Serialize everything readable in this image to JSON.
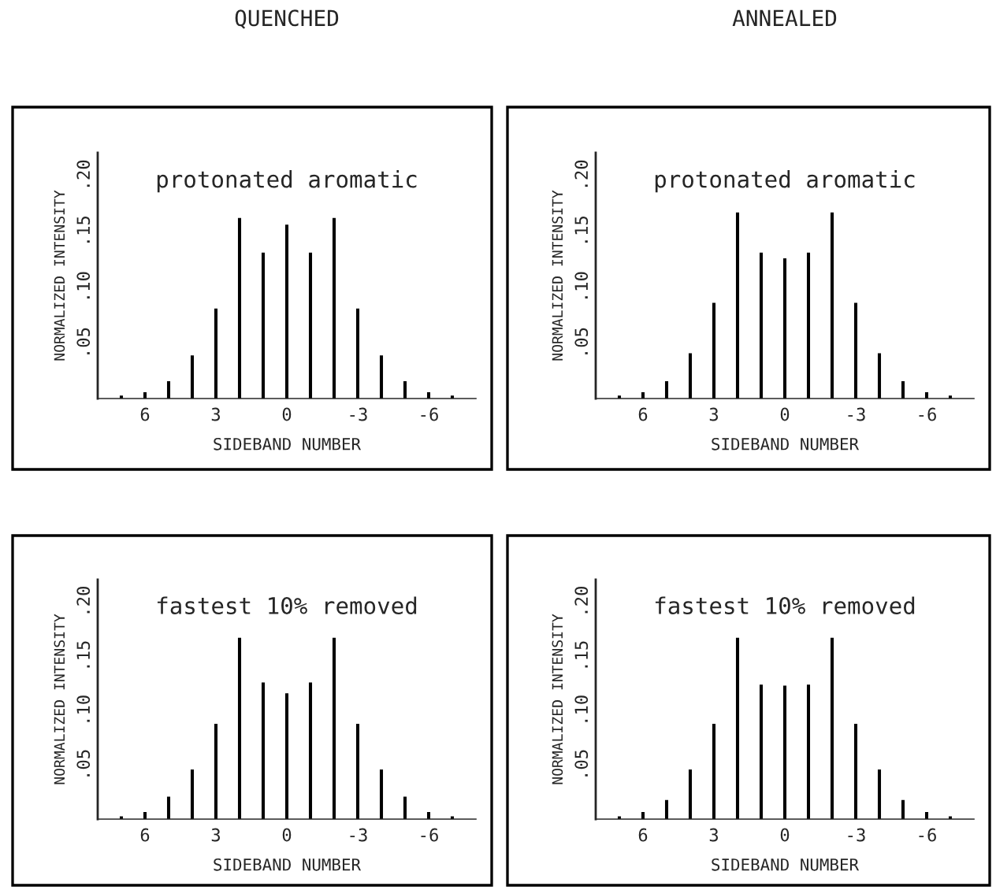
{
  "chart_data": [
    {
      "type": "bar",
      "title": "QUENCHED",
      "annotations": [
        "protonated aromatic"
      ],
      "xlabel": "SIDEBAND NUMBER",
      "ylabel": "NORMALIZED INTENSITY",
      "x": [
        7,
        6,
        5,
        4,
        3,
        2,
        1,
        0,
        -1,
        -2,
        -3,
        -4,
        -5,
        -6,
        -7
      ],
      "values": [
        0.002,
        0.005,
        0.015,
        0.038,
        0.08,
        0.161,
        0.13,
        0.155,
        0.13,
        0.161,
        0.08,
        0.038,
        0.015,
        0.005,
        0.002
      ],
      "color": "#000000",
      "xlim": [
        8,
        -8
      ],
      "xticks": [
        6,
        3,
        0,
        -3,
        -6
      ],
      "ylim": [
        0,
        0.22
      ],
      "yticks": [
        {
          "value": 0.05,
          "label": ".05"
        },
        {
          "value": 0.1,
          "label": ".10"
        },
        {
          "value": 0.15,
          "label": ".15"
        },
        {
          "value": 0.2,
          "label": ".20"
        }
      ],
      "grid": false,
      "legend": false
    },
    {
      "type": "bar",
      "title": "ANNEALED",
      "annotations": [
        "protonated aromatic"
      ],
      "xlabel": "SIDEBAND NUMBER",
      "ylabel": "NORMALIZED INTENSITY",
      "x": [
        7,
        6,
        5,
        4,
        3,
        2,
        1,
        0,
        -1,
        -2,
        -3,
        -4,
        -5,
        -6,
        -7
      ],
      "values": [
        0.002,
        0.005,
        0.015,
        0.04,
        0.085,
        0.166,
        0.13,
        0.125,
        0.13,
        0.166,
        0.085,
        0.04,
        0.015,
        0.005,
        0.002
      ],
      "color": "#000000",
      "xlim": [
        8,
        -8
      ],
      "xticks": [
        6,
        3,
        0,
        -3,
        -6
      ],
      "ylim": [
        0,
        0.22
      ],
      "yticks": [
        {
          "value": 0.05,
          "label": ".05"
        },
        {
          "value": 0.1,
          "label": ".10"
        },
        {
          "value": 0.15,
          "label": ".15"
        },
        {
          "value": 0.2,
          "label": ".20"
        }
      ],
      "grid": false,
      "legend": false
    },
    {
      "type": "bar",
      "annotations": [
        "fastest 10% removed"
      ],
      "xlabel": "SIDEBAND NUMBER",
      "ylabel": "NORMALIZED INTENSITY",
      "x": [
        7,
        6,
        5,
        4,
        3,
        2,
        1,
        0,
        -1,
        -2,
        -3,
        -4,
        -5,
        -6,
        -7
      ],
      "values": [
        0.002,
        0.006,
        0.02,
        0.045,
        0.087,
        0.166,
        0.125,
        0.115,
        0.125,
        0.166,
        0.087,
        0.045,
        0.02,
        0.006,
        0.002
      ],
      "color": "#000000",
      "xlim": [
        8,
        -8
      ],
      "xticks": [
        6,
        3,
        0,
        -3,
        -6
      ],
      "ylim": [
        0,
        0.22
      ],
      "yticks": [
        {
          "value": 0.05,
          "label": ".05"
        },
        {
          "value": 0.1,
          "label": ".10"
        },
        {
          "value": 0.15,
          "label": ".15"
        },
        {
          "value": 0.2,
          "label": ".20"
        }
      ],
      "grid": false,
      "legend": false
    },
    {
      "type": "bar",
      "annotations": [
        "fastest 10% removed"
      ],
      "xlabel": "SIDEBAND NUMBER",
      "ylabel": "NORMALIZED INTENSITY",
      "x": [
        7,
        6,
        5,
        4,
        3,
        2,
        1,
        0,
        -1,
        -2,
        -3,
        -4,
        -5,
        -6,
        -7
      ],
      "values": [
        0.002,
        0.006,
        0.017,
        0.045,
        0.087,
        0.166,
        0.123,
        0.122,
        0.123,
        0.166,
        0.087,
        0.045,
        0.017,
        0.006,
        0.002
      ],
      "color": "#000000",
      "xlim": [
        8,
        -8
      ],
      "xticks": [
        6,
        3,
        0,
        -3,
        -6
      ],
      "ylim": [
        0,
        0.22
      ],
      "yticks": [
        {
          "value": 0.05,
          "label": ".05"
        },
        {
          "value": 0.1,
          "label": ".10"
        },
        {
          "value": 0.15,
          "label": ".15"
        },
        {
          "value": 0.2,
          "label": ".20"
        }
      ],
      "grid": false,
      "legend": false
    }
  ]
}
